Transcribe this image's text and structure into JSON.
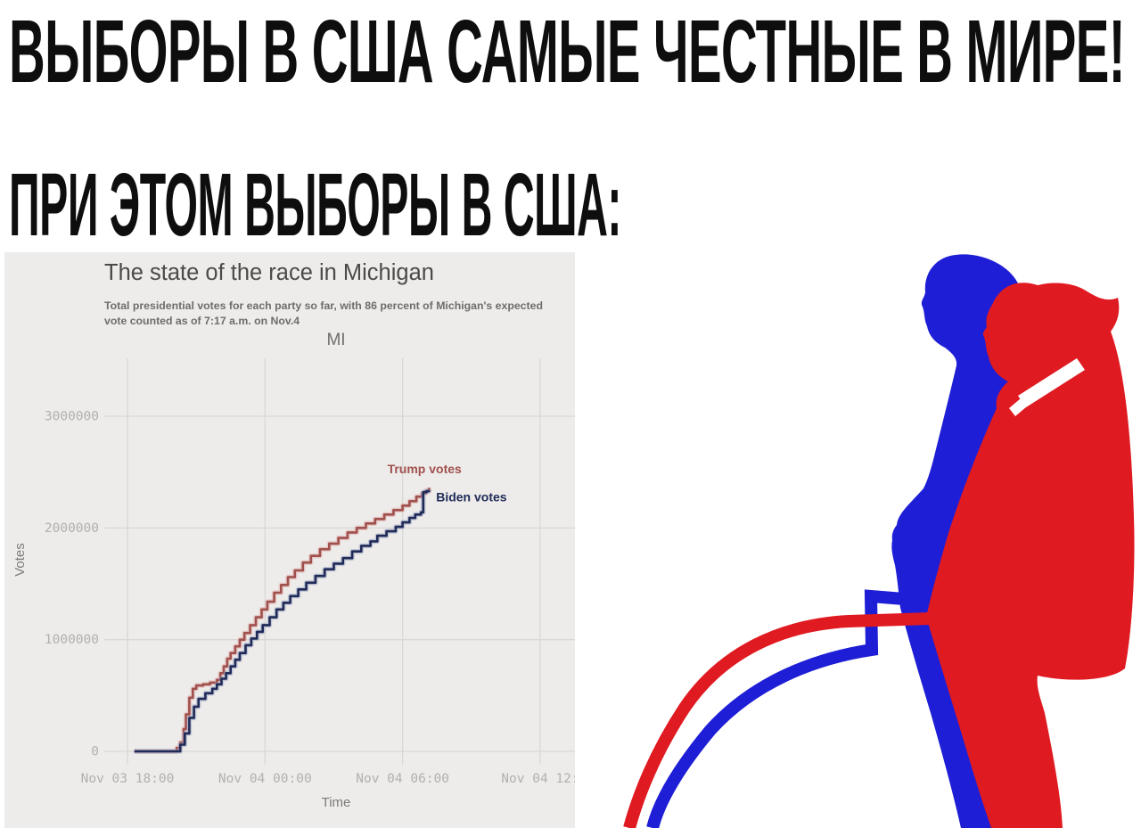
{
  "headline": {
    "line1": "ВЫБОРЫ В США САМЫЕ ЧЕСТНЫЕ В МИРЕ!",
    "line2": "ПРИ ЭТОМ ВЫБОРЫ В США:",
    "color": "#0e0e0e"
  },
  "chart_data": {
    "type": "line",
    "title": "The state of the race in Michigan",
    "subtitle": "Total presidential votes for each party so far, with 86 percent of Michigan's expected vote counted as of 7:17 a.m. on Nov.4",
    "panel_label": "MI",
    "xlabel": "Time",
    "ylabel": "Votes",
    "background": "#edecea",
    "grid": true,
    "gridline_color": "#d9d8d6",
    "tick_color": "#b2b0ad",
    "axis_label_color": "#7b7a78",
    "x_unit": "hours since Nov 3 00:00",
    "xlim": [
      17.1,
      36.8
    ],
    "ylim": [
      0,
      3500000
    ],
    "x_ticks": [
      {
        "h": 18,
        "label": "Nov 03 18:00"
      },
      {
        "h": 24,
        "label": "Nov 04 00:00"
      },
      {
        "h": 30,
        "label": "Nov 04 06:00"
      },
      {
        "h": 36,
        "label": "Nov 04 12:"
      }
    ],
    "y_ticks": [
      0,
      1000000,
      2000000,
      3000000
    ],
    "legend": "end-of-line labels",
    "series": [
      {
        "name": "Trump votes",
        "color": "#a0504d",
        "halo": "#dfa9a6",
        "label_anchor": "middle",
        "label_dx": -5,
        "label_dy": -16,
        "points": [
          [
            18.3,
            0
          ],
          [
            20.0,
            0
          ],
          [
            20.15,
            30000
          ],
          [
            20.3,
            80000
          ],
          [
            20.45,
            200000
          ],
          [
            20.55,
            330000
          ],
          [
            20.7,
            480000
          ],
          [
            20.85,
            560000
          ],
          [
            21.0,
            590000
          ],
          [
            21.3,
            600000
          ],
          [
            21.6,
            615000
          ],
          [
            21.9,
            640000
          ],
          [
            22.05,
            700000
          ],
          [
            22.2,
            760000
          ],
          [
            22.35,
            830000
          ],
          [
            22.5,
            880000
          ],
          [
            22.7,
            940000
          ],
          [
            22.9,
            1000000
          ],
          [
            23.1,
            1060000
          ],
          [
            23.35,
            1130000
          ],
          [
            23.6,
            1200000
          ],
          [
            23.85,
            1270000
          ],
          [
            24.1,
            1340000
          ],
          [
            24.4,
            1420000
          ],
          [
            24.7,
            1490000
          ],
          [
            25.0,
            1560000
          ],
          [
            25.3,
            1620000
          ],
          [
            25.65,
            1690000
          ],
          [
            26.0,
            1750000
          ],
          [
            26.4,
            1810000
          ],
          [
            26.8,
            1860000
          ],
          [
            27.2,
            1910000
          ],
          [
            27.6,
            1960000
          ],
          [
            28.0,
            2000000
          ],
          [
            28.4,
            2040000
          ],
          [
            28.8,
            2080000
          ],
          [
            29.2,
            2120000
          ],
          [
            29.6,
            2160000
          ],
          [
            30.0,
            2200000
          ],
          [
            30.3,
            2240000
          ],
          [
            30.6,
            2280000
          ],
          [
            30.85,
            2310000
          ],
          [
            31.0,
            2330000
          ],
          [
            31.15,
            2360000
          ]
        ]
      },
      {
        "name": "Biden votes",
        "color": "#1f2a57",
        "halo": "#98a0c2",
        "label_anchor": "start",
        "label_dx": 8,
        "label_dy": 13,
        "points": [
          [
            18.3,
            0
          ],
          [
            20.1,
            0
          ],
          [
            20.3,
            60000
          ],
          [
            20.5,
            160000
          ],
          [
            20.7,
            300000
          ],
          [
            20.9,
            400000
          ],
          [
            21.1,
            470000
          ],
          [
            21.4,
            520000
          ],
          [
            21.7,
            560000
          ],
          [
            21.9,
            600000
          ],
          [
            22.1,
            650000
          ],
          [
            22.3,
            700000
          ],
          [
            22.5,
            760000
          ],
          [
            22.7,
            820000
          ],
          [
            22.9,
            880000
          ],
          [
            23.15,
            950000
          ],
          [
            23.4,
            1010000
          ],
          [
            23.65,
            1070000
          ],
          [
            23.9,
            1130000
          ],
          [
            24.2,
            1200000
          ],
          [
            24.5,
            1270000
          ],
          [
            24.8,
            1330000
          ],
          [
            25.1,
            1390000
          ],
          [
            25.45,
            1450000
          ],
          [
            25.8,
            1510000
          ],
          [
            26.2,
            1570000
          ],
          [
            26.6,
            1630000
          ],
          [
            27.0,
            1680000
          ],
          [
            27.4,
            1730000
          ],
          [
            27.8,
            1790000
          ],
          [
            28.2,
            1840000
          ],
          [
            28.6,
            1880000
          ],
          [
            28.9,
            1930000
          ],
          [
            29.3,
            1970000
          ],
          [
            29.7,
            2010000
          ],
          [
            30.0,
            2050000
          ],
          [
            30.3,
            2090000
          ],
          [
            30.55,
            2120000
          ],
          [
            30.8,
            2140000
          ],
          [
            30.9,
            2320000
          ],
          [
            31.05,
            2330000
          ],
          [
            31.15,
            2340000
          ]
        ]
      }
    ]
  },
  "illustration": {
    "description": "Blue and red Trump-like silhouettes urinating streams shaped like the vote-count curves",
    "blue": "#1e1ed6",
    "red": "#e01a21",
    "tie_white": "#ffffff"
  }
}
